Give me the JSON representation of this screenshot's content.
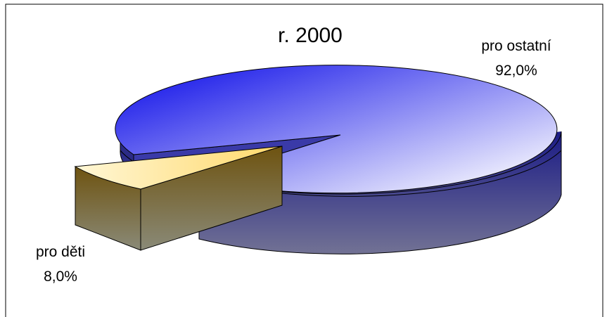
{
  "chart_data": {
    "type": "pie",
    "title": "r. 2000",
    "slices": [
      {
        "label": "pro ostatní",
        "value": 92.0,
        "value_label": "92,0%",
        "color": "#2f2fd9"
      },
      {
        "label": "pro děti",
        "value": 8.0,
        "value_label": "8,0%",
        "color": "#ffe9a0"
      }
    ]
  }
}
